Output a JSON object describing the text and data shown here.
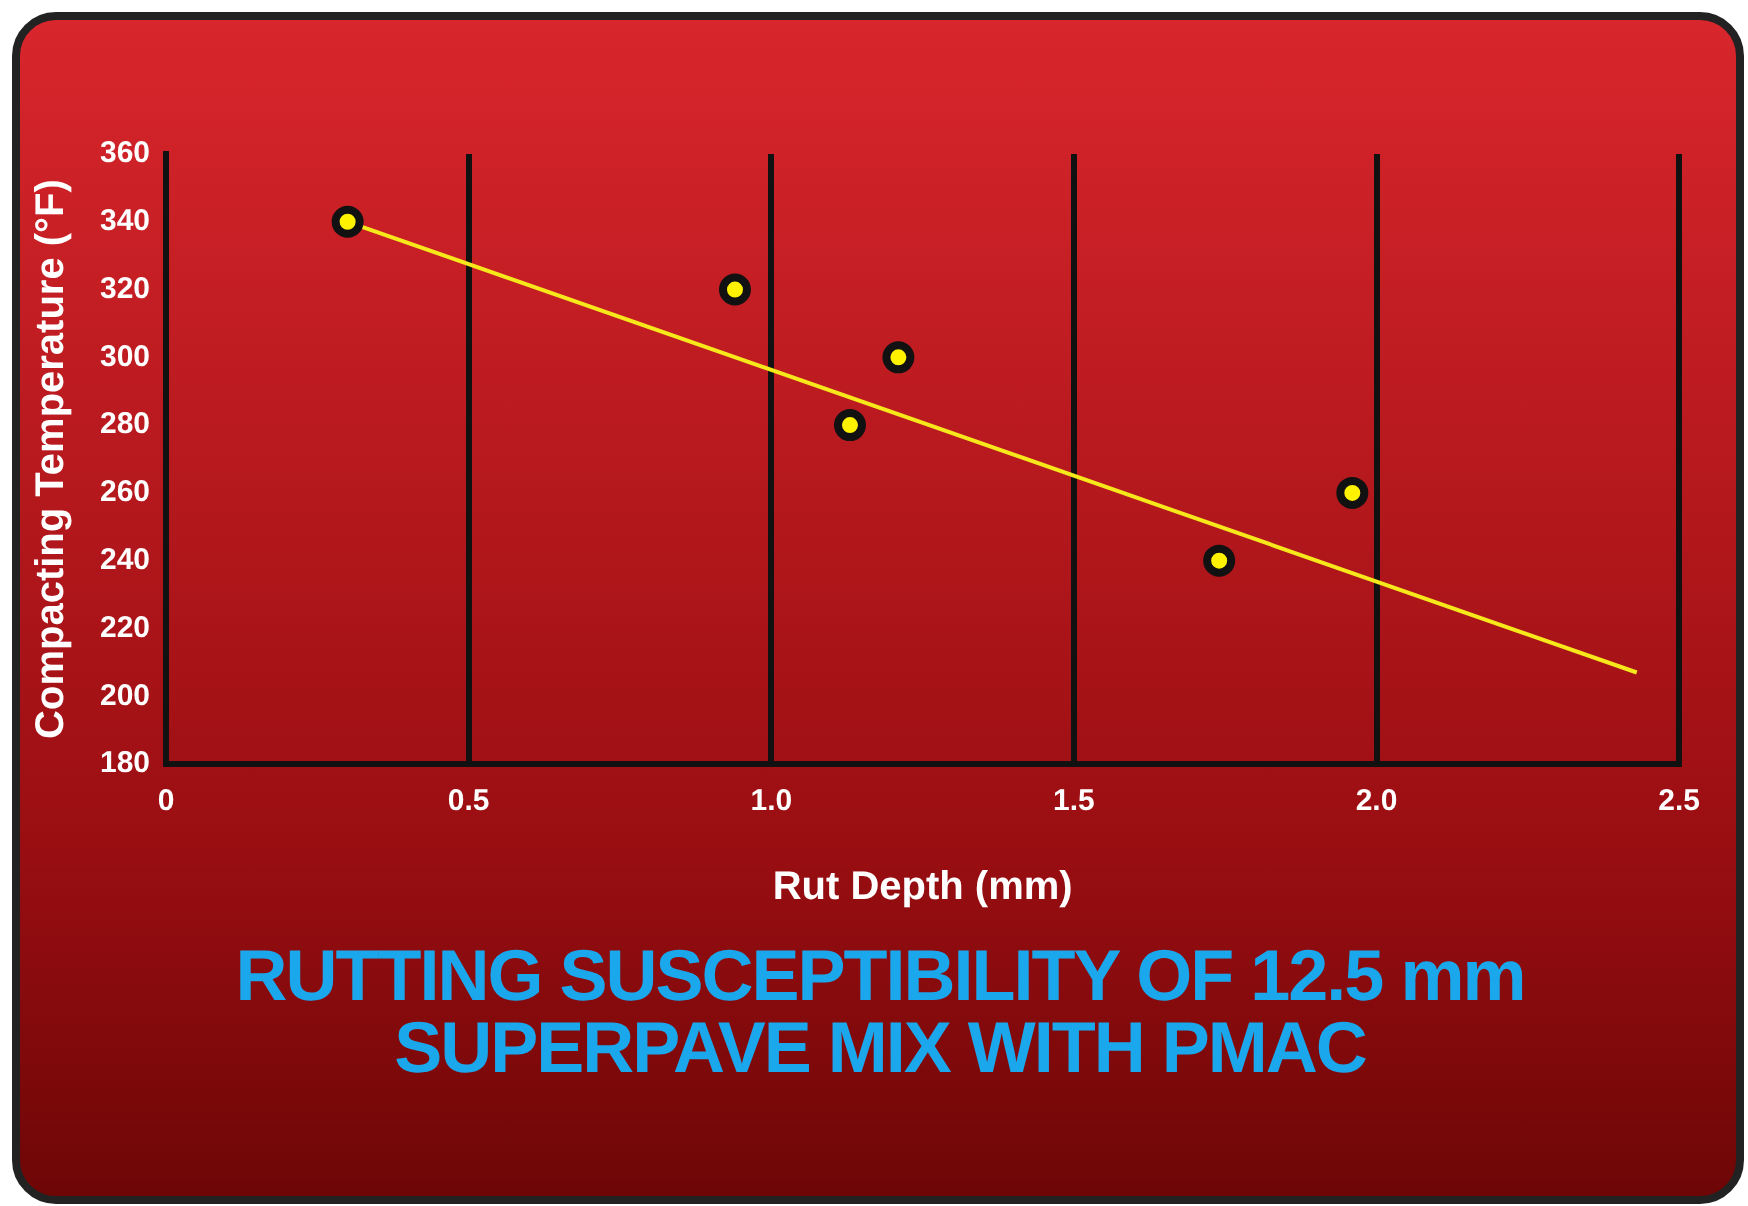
{
  "chart_data": {
    "type": "scatter",
    "title": "RUTTING SUSCEPTIBILITY OF 12.5 mm SUPERPAVE MIX WITH PMAC",
    "xlabel": "Rut Depth (mm)",
    "ylabel": "Compacting Temperature (°F)",
    "xlim": [
      0,
      2.5
    ],
    "xticks": [
      0,
      0.5,
      {
        "value": 1,
        "label": "1.0"
      },
      1.5,
      {
        "value": 2,
        "label": "2.0"
      },
      2.5
    ],
    "ylim": [
      180,
      360
    ],
    "yticks": [
      180,
      200,
      220,
      240,
      260,
      280,
      300,
      320,
      340,
      360
    ],
    "grid": "x",
    "legend": false,
    "series": [
      {
        "color": "#fff200",
        "marker": "circle",
        "x": [
          0.3,
          0.94,
          1.13,
          1.21,
          1.74,
          1.96
        ],
        "values": [
          340,
          320,
          280,
          300,
          240,
          260
        ]
      },
      {
        "type": "line",
        "color": "#f7e81c",
        "marker": "none",
        "x": [
          0.3,
          2.43
        ],
        "values": [
          340,
          207
        ]
      }
    ]
  }
}
